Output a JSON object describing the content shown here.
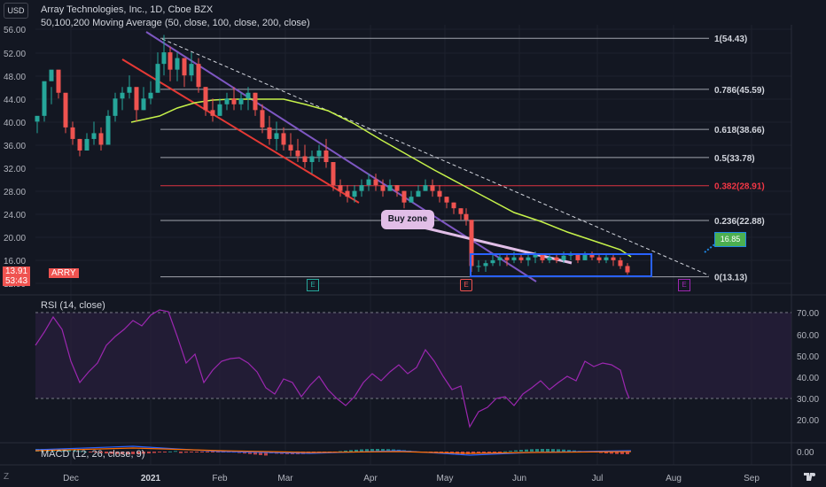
{
  "header": {
    "currency": "USD",
    "title": "Array Technologies, Inc., 1D, Cboe BZX",
    "indicator": "50,100,200 Moving Average (50, close, 100, close, 200, close)"
  },
  "price_axis": {
    "ticks": [
      "56.00",
      "52.00",
      "48.00",
      "44.00",
      "40.00",
      "36.00",
      "32.00",
      "28.00",
      "24.00",
      "20.00",
      "16.00",
      "12.00"
    ],
    "current_price": "13.91",
    "countdown": "53:43",
    "ticker": "ARRY"
  },
  "fib_levels": [
    {
      "label": "1(54.43)",
      "value": 54.43,
      "color": "#d1d4dc"
    },
    {
      "label": "0.786(45.59)",
      "value": 45.59,
      "color": "#d1d4dc"
    },
    {
      "label": "0.618(38.66)",
      "value": 38.66,
      "color": "#d1d4dc"
    },
    {
      "label": "0.5(33.78)",
      "value": 33.78,
      "color": "#d1d4dc"
    },
    {
      "label": "0.382(28.91)",
      "value": 28.91,
      "color": "#f23645"
    },
    {
      "label": "0.236(22.88)",
      "value": 22.88,
      "color": "#d1d4dc"
    },
    {
      "label": "0(13.13)",
      "value": 13.13,
      "color": "#d1d4dc"
    }
  ],
  "annotations": {
    "buy_zone": "Buy zone",
    "price_tag": "16.85",
    "earnings_marker": "E"
  },
  "rsi": {
    "label": "RSI (14, close)",
    "ticks": [
      "70.00",
      "60.00",
      "50.00",
      "40.00",
      "30.00",
      "20.00"
    ]
  },
  "macd": {
    "label": "MACD (12, 26, close, 9)",
    "tick": "0.00"
  },
  "time_axis": [
    "Dec",
    "2021",
    "Feb",
    "Mar",
    "Apr",
    "May",
    "Jun",
    "Jul",
    "Aug",
    "Sep"
  ],
  "footer": {
    "timezone_icon": "Z",
    "logo_icon": "tv-logo"
  },
  "colors": {
    "background": "#131722",
    "up": "#26a69a",
    "down": "#ef5350",
    "ma50": "#c6f24a",
    "channel": "#e53935",
    "channel2": "#7e57c2",
    "rsi": "#9c27b0",
    "zone": "#2962ff"
  },
  "chart_data": {
    "type": "candlestick",
    "title": "Array Technologies, Inc., 1D, Cboe BZX",
    "y_axis_range": [
      12,
      57
    ],
    "x": [
      "2020-11-20",
      "2020-11-27",
      "2020-12-04",
      "2020-12-11",
      "2020-12-18",
      "2020-12-25",
      "2021-01-01",
      "2021-01-08",
      "2021-01-15",
      "2021-01-22",
      "2021-01-29",
      "2021-02-05",
      "2021-02-12",
      "2021-02-19",
      "2021-02-26",
      "2021-03-05",
      "2021-03-12",
      "2021-03-19",
      "2021-03-26",
      "2021-04-02",
      "2021-04-09",
      "2021-04-16",
      "2021-04-23",
      "2021-04-30",
      "2021-05-07",
      "2021-05-14",
      "2021-05-21",
      "2021-05-28",
      "2021-06-04",
      "2021-06-11",
      "2021-06-18",
      "2021-06-25",
      "2021-07-02",
      "2021-07-09",
      "2021-07-16"
    ],
    "close": [
      40.5,
      47.5,
      38.0,
      35.5,
      38.5,
      44.5,
      41.0,
      48.5,
      52.5,
      49.0,
      51.0,
      44.0,
      42.0,
      43.5,
      41.5,
      37.5,
      34.5,
      33.0,
      34.5,
      29.0,
      28.5,
      29.5,
      28.0,
      28.5,
      24.5,
      15.5,
      15.8,
      16.2,
      16.5,
      16.0,
      16.5,
      16.8,
      16.2,
      15.5,
      13.91
    ],
    "ma50_visible": "2021-01-15 onward",
    "rsi_range": [
      20,
      70
    ],
    "buy_zone_range": [
      13.13,
      17.0
    ]
  }
}
